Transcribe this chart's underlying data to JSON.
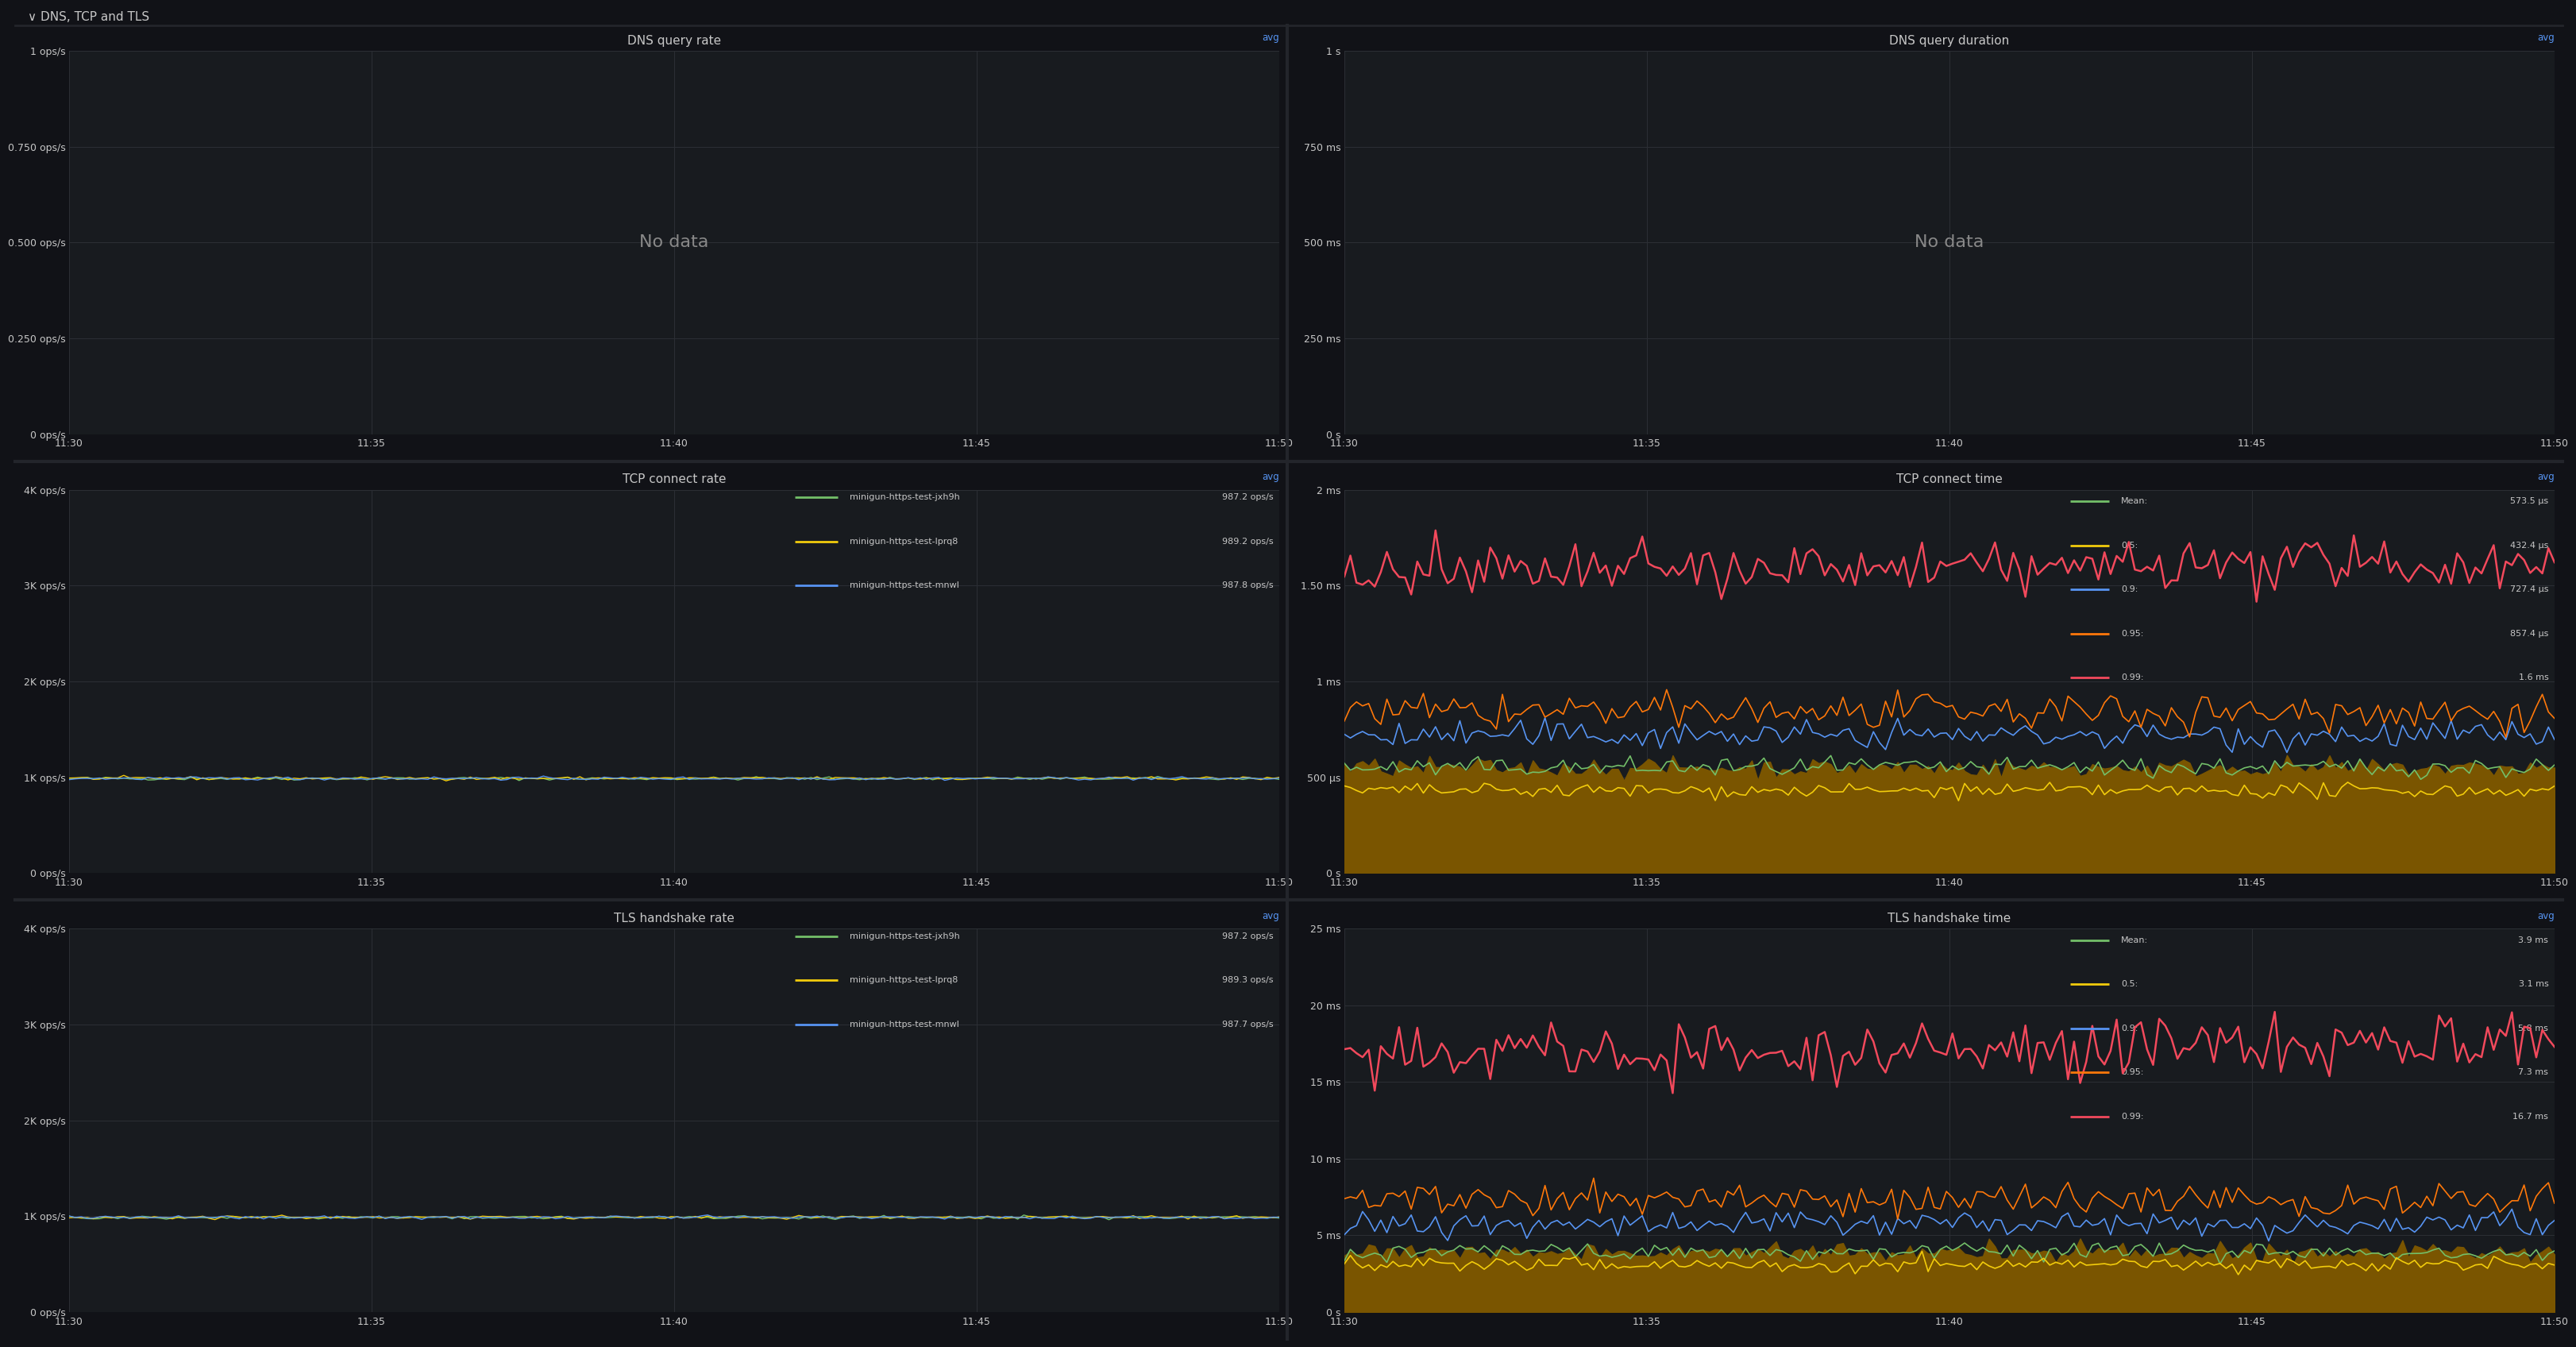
{
  "bg_color": "#111217",
  "panel_bg": "#181b1f",
  "grid_color": "#2c2f35",
  "text_color": "#c7c7c7",
  "title_color": "#c7c7c7",
  "header_bg": "#0d0e11",
  "avg_color": "#5794f2",
  "header_title": "DNS, TCP and TLS",
  "panels": [
    {
      "title": "DNS query rate",
      "row": 0,
      "col": 0,
      "type": "no_data",
      "yticks": [
        "1 ops/s",
        "0.750 ops/s",
        "0.500 ops/s",
        "0.250 ops/s",
        "0 ops/s"
      ],
      "yvals": [
        1.0,
        0.75,
        0.5,
        0.25,
        0.0
      ],
      "ylim": [
        0,
        1.0
      ],
      "xticks": [
        "11:30",
        "11:35",
        "11:40",
        "11:45",
        "11:50"
      ],
      "show_avg": true,
      "no_data_text": "No data"
    },
    {
      "title": "DNS query duration",
      "row": 0,
      "col": 1,
      "type": "no_data",
      "yticks": [
        "1 s",
        "750 ms",
        "500 ms",
        "250 ms",
        "0 s"
      ],
      "yvals": [
        1.0,
        0.75,
        0.5,
        0.25,
        0.0
      ],
      "ylim": [
        0,
        1.0
      ],
      "xticks": [
        "11:30",
        "11:35",
        "11:40",
        "11:45",
        "11:50"
      ],
      "show_avg": true,
      "no_data_text": "No data"
    },
    {
      "title": "TCP connect rate",
      "row": 1,
      "col": 0,
      "type": "lines",
      "yticks": [
        "4K ops/s",
        "3K ops/s",
        "2K ops/s",
        "1K ops/s",
        "0 ops/s"
      ],
      "yvals": [
        4000,
        3000,
        2000,
        1000,
        0
      ],
      "ylim": [
        0,
        4000
      ],
      "xticks": [
        "11:30",
        "11:35",
        "11:40",
        "11:45",
        "11:50"
      ],
      "show_avg": true,
      "legend": [
        {
          "label": "minigun-https-test-jxh9h",
          "value": "987.2 ops/s",
          "color": "#73bf69"
        },
        {
          "label": "minigun-https-test-lprq8",
          "value": "989.2 ops/s",
          "color": "#f2cc0c"
        },
        {
          "label": "minigun-https-test-mnwl",
          "value": "987.8 ops/s",
          "color": "#5794f2"
        }
      ],
      "lines": [
        {
          "color": "#73bf69",
          "base": 987,
          "noise": 8
        },
        {
          "color": "#f2cc0c",
          "base": 989,
          "noise": 8
        },
        {
          "color": "#5794f2",
          "base": 988,
          "noise": 8
        }
      ]
    },
    {
      "title": "TCP connect time",
      "row": 1,
      "col": 1,
      "type": "lines_area",
      "yticks": [
        "2 ms",
        "1.50 ms",
        "1 ms",
        "500 μs",
        "0 s"
      ],
      "yvals": [
        2000,
        1500,
        1000,
        500,
        0
      ],
      "ylim": [
        0,
        2000
      ],
      "xticks": [
        "11:30",
        "11:35",
        "11:40",
        "11:45",
        "11:50"
      ],
      "show_avg": true,
      "legend": [
        {
          "label": "Mean:",
          "value": "573.5 μs",
          "color": "#73bf69"
        },
        {
          "label": "0.5:",
          "value": "432.4 μs",
          "color": "#f2cc0c"
        },
        {
          "label": "0.9:",
          "value": "727.4 μs",
          "color": "#5794f2"
        },
        {
          "label": "0.95:",
          "value": "857.4 μs",
          "color": "#ff780a"
        },
        {
          "label": "0.99:",
          "value": "1.6 ms",
          "color": "#f2495c"
        }
      ],
      "fill_color": "#7a5500",
      "lines_data": [
        {
          "color": "#73bf69",
          "base": 550,
          "noise": 25,
          "trend": 0
        },
        {
          "color": "#f2cc0c",
          "base": 430,
          "noise": 18,
          "trend": 0
        },
        {
          "color": "#5794f2",
          "base": 720,
          "noise": 35,
          "trend": 0
        },
        {
          "color": "#ff780a",
          "base": 840,
          "noise": 45,
          "trend": 0
        },
        {
          "color": "#f2495c",
          "base": 1560,
          "noise": 70,
          "trend": 60
        }
      ]
    },
    {
      "title": "TLS handshake rate",
      "row": 2,
      "col": 0,
      "type": "lines",
      "yticks": [
        "4K ops/s",
        "3K ops/s",
        "2K ops/s",
        "1K ops/s",
        "0 ops/s"
      ],
      "yvals": [
        4000,
        3000,
        2000,
        1000,
        0
      ],
      "ylim": [
        0,
        4000
      ],
      "xticks": [
        "11:30",
        "11:35",
        "11:40",
        "11:45",
        "11:50"
      ],
      "show_avg": true,
      "legend": [
        {
          "label": "minigun-https-test-jxh9h",
          "value": "987.2 ops/s",
          "color": "#73bf69"
        },
        {
          "label": "minigun-https-test-lprq8",
          "value": "989.3 ops/s",
          "color": "#f2cc0c"
        },
        {
          "label": "minigun-https-test-mnwl",
          "value": "987.7 ops/s",
          "color": "#5794f2"
        }
      ],
      "lines": [
        {
          "color": "#73bf69",
          "base": 987,
          "noise": 8
        },
        {
          "color": "#f2cc0c",
          "base": 989,
          "noise": 8
        },
        {
          "color": "#5794f2",
          "base": 988,
          "noise": 8
        }
      ]
    },
    {
      "title": "TLS handshake time",
      "row": 2,
      "col": 1,
      "type": "lines_area",
      "yticks": [
        "25 ms",
        "20 ms",
        "15 ms",
        "10 ms",
        "5 ms",
        "0 s"
      ],
      "yvals": [
        25000,
        20000,
        15000,
        10000,
        5000,
        0
      ],
      "ylim": [
        0,
        25000
      ],
      "xticks": [
        "11:30",
        "11:35",
        "11:40",
        "11:45",
        "11:50"
      ],
      "show_avg": true,
      "legend": [
        {
          "label": "Mean:",
          "value": "3.9 ms",
          "color": "#73bf69"
        },
        {
          "label": "0.5:",
          "value": "3.1 ms",
          "color": "#f2cc0c"
        },
        {
          "label": "0.9:",
          "value": "5.8 ms",
          "color": "#5794f2"
        },
        {
          "label": "0.95:",
          "value": "7.3 ms",
          "color": "#ff780a"
        },
        {
          "label": "0.99:",
          "value": "16.7 ms",
          "color": "#f2495c"
        }
      ],
      "fill_color": "#7a5500",
      "lines_data": [
        {
          "color": "#73bf69",
          "base": 3900,
          "noise": 300,
          "trend": 0
        },
        {
          "color": "#f2cc0c",
          "base": 3100,
          "noise": 220,
          "trend": 0
        },
        {
          "color": "#5794f2",
          "base": 5800,
          "noise": 400,
          "trend": 0
        },
        {
          "color": "#ff780a",
          "base": 7300,
          "noise": 500,
          "trend": 0
        },
        {
          "color": "#f2495c",
          "base": 16700,
          "noise": 900,
          "trend": 800
        }
      ]
    }
  ]
}
